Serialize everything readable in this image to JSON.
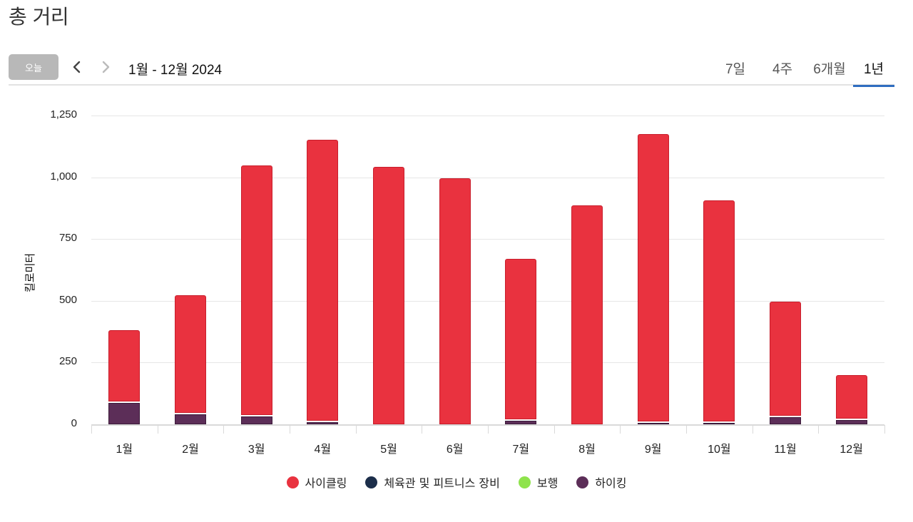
{
  "page": {
    "title": "총 거리"
  },
  "toolbar": {
    "today_label": "오늘",
    "prev_icon": "chevron-left-icon",
    "next_icon": "chevron-right-icon",
    "date_range": "1월 - 12월 2024",
    "range_tabs": [
      {
        "label": "7일",
        "active": false
      },
      {
        "label": "4주",
        "active": false
      },
      {
        "label": "6개월",
        "active": false
      },
      {
        "label": "1년",
        "active": true
      }
    ],
    "active_color": "#2f6dc0"
  },
  "legend": {
    "items": [
      {
        "label": "사이클링",
        "color": "#e9323f"
      },
      {
        "label": "체육관 및 피트니스 장비",
        "color": "#1c2e4a"
      },
      {
        "label": "보행",
        "color": "#8fe34c"
      },
      {
        "label": "하이킹",
        "color": "#5c2e58"
      }
    ]
  },
  "chart_data": {
    "type": "bar",
    "stacked": true,
    "title": "총 거리",
    "xlabel": "",
    "ylabel": "킬로미터",
    "ylim": [
      0,
      1250
    ],
    "yticks": [
      "0",
      "250",
      "500",
      "750",
      "1,000",
      "1,250"
    ],
    "grid": true,
    "legend_position": "bottom",
    "categories": [
      "1월",
      "2월",
      "3월",
      "4월",
      "5월",
      "6월",
      "7월",
      "8월",
      "9월",
      "10월",
      "11월",
      "12월"
    ],
    "series": [
      {
        "name": "사이클링",
        "color": "#e9323f",
        "values": [
          288,
          477,
          1010,
          1137,
          1042,
          996,
          650,
          886,
          1164,
          896,
          461,
          176
        ]
      },
      {
        "name": "체육관 및 피트니스 장비",
        "color": "#1c2e4a",
        "values": [
          0,
          0,
          0,
          0,
          0,
          0,
          0,
          0,
          0,
          0,
          0,
          0
        ]
      },
      {
        "name": "보행",
        "color": "#8fe34c",
        "values": [
          0,
          0,
          0,
          0,
          0,
          0,
          0,
          0,
          0,
          0,
          0,
          0
        ]
      },
      {
        "name": "하이킹",
        "color": "#5c2e58",
        "values": [
          87,
          40,
          32,
          9,
          0,
          0,
          14,
          0,
          2,
          2,
          30,
          17
        ]
      }
    ]
  }
}
